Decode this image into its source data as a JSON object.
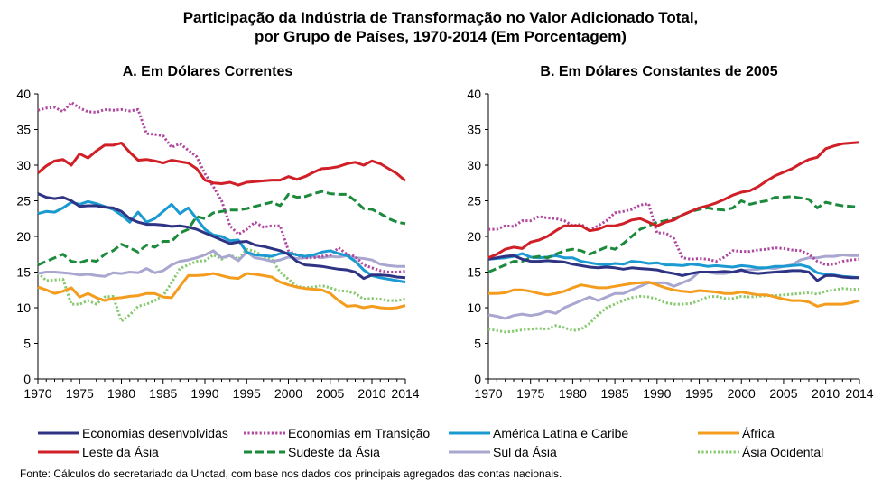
{
  "header": {
    "title_line1": "Participação da Indústria de Transformação no Valor Adicionado Total,",
    "title_line2": "por Grupo de Países, 1970-2014 (Em Porcentagem)"
  },
  "footer": {
    "source": "Fonte: Cálculos do secretariado da Unctad, com base nos dados dos principais agregados das contas nacionais."
  },
  "legend": [
    {
      "name": "Economias desenvolvidas",
      "color": "#2e3383",
      "dash": "solid"
    },
    {
      "name": "Economias em Transição",
      "color": "#b0479e",
      "dash": "dotted"
    },
    {
      "name": "América Latina e Caribe",
      "color": "#1a9ad1",
      "dash": "solid"
    },
    {
      "name": "África",
      "color": "#f39c1e",
      "dash": "solid"
    },
    {
      "name": "Leste da Ásia",
      "color": "#d01f26",
      "dash": "solid"
    },
    {
      "name": "Sudeste da Ásia",
      "color": "#1c8a3c",
      "dash": "dashed"
    },
    {
      "name": "Sul da Ásia",
      "color": "#a9a7d0",
      "dash": "solid"
    },
    {
      "name": "Ásia Ocidental",
      "color": "#86c96e",
      "dash": "dotted"
    }
  ],
  "chart_data": [
    {
      "type": "line",
      "title": "A. Em Dólares Correntes",
      "xlim": [
        1970,
        2014
      ],
      "ylim": [
        0,
        40
      ],
      "xticks": [
        1970,
        1975,
        1980,
        1985,
        1990,
        1995,
        2000,
        2005,
        2010,
        2014
      ],
      "yticks": [
        0,
        5,
        10,
        15,
        20,
        25,
        30,
        35,
        40
      ],
      "x": [
        1970,
        1971,
        1972,
        1973,
        1974,
        1975,
        1976,
        1977,
        1978,
        1979,
        1980,
        1981,
        1982,
        1983,
        1984,
        1985,
        1986,
        1987,
        1988,
        1989,
        1990,
        1991,
        1992,
        1993,
        1994,
        1995,
        1996,
        1997,
        1998,
        1999,
        2000,
        2001,
        2002,
        2003,
        2004,
        2005,
        2006,
        2007,
        2008,
        2009,
        2010,
        2011,
        2012,
        2013,
        2014
      ],
      "series": [
        {
          "name": "Economias desenvolvidas",
          "values": [
            26.0,
            25.5,
            25.3,
            25.5,
            25.0,
            24.2,
            24.3,
            24.3,
            24.1,
            24.0,
            23.5,
            22.5,
            22.0,
            21.7,
            21.7,
            21.6,
            21.4,
            21.5,
            21.3,
            21.0,
            20.5,
            20.0,
            19.5,
            19.0,
            19.2,
            19.3,
            18.8,
            18.6,
            18.3,
            18.0,
            17.5,
            16.5,
            16.0,
            15.9,
            15.8,
            15.6,
            15.4,
            15.3,
            15.0,
            14.1,
            14.6,
            14.6,
            14.5,
            14.3,
            14.2
          ]
        },
        {
          "name": "Economias em Transição",
          "values": [
            37.7,
            38.0,
            38.1,
            37.5,
            38.8,
            38.0,
            37.5,
            37.4,
            37.8,
            37.7,
            37.8,
            37.6,
            37.8,
            34.4,
            34.3,
            34.1,
            32.5,
            33.0,
            32.1,
            31.2,
            28.8,
            27.0,
            25.0,
            21.5,
            20.3,
            21.0,
            22.0,
            21.3,
            21.5,
            21.5,
            18.0,
            17.4,
            17.0,
            17.0,
            17.2,
            17.4,
            18.4,
            17.5,
            17.2,
            16.0,
            15.6,
            15.2,
            15.0,
            15.0,
            15.1
          ]
        },
        {
          "name": "América Latina e Caribe",
          "values": [
            23.2,
            23.5,
            23.4,
            24.0,
            24.8,
            24.5,
            24.9,
            24.6,
            24.2,
            23.8,
            23.0,
            22.0,
            23.4,
            22.0,
            22.5,
            23.5,
            24.5,
            23.2,
            24.0,
            22.5,
            21.0,
            20.2,
            20.0,
            19.4,
            19.5,
            17.8,
            17.4,
            17.3,
            17.2,
            17.6,
            17.7,
            17.4,
            17.2,
            17.4,
            17.8,
            18.0,
            17.6,
            17.3,
            16.5,
            15.3,
            14.5,
            14.2,
            14.0,
            13.8,
            13.6
          ]
        },
        {
          "name": "África",
          "values": [
            12.9,
            12.5,
            12.0,
            12.3,
            12.8,
            11.5,
            12.0,
            11.4,
            11.0,
            11.3,
            11.4,
            11.6,
            11.7,
            12.0,
            12.0,
            11.5,
            11.4,
            13.0,
            14.5,
            14.5,
            14.6,
            14.8,
            14.5,
            14.2,
            14.1,
            14.8,
            14.7,
            14.5,
            14.3,
            13.6,
            13.2,
            12.9,
            12.7,
            12.6,
            12.5,
            12.0,
            11.0,
            10.2,
            10.3,
            10.0,
            10.2,
            10.0,
            9.9,
            10.0,
            10.3
          ]
        },
        {
          "name": "Leste da Ásia",
          "values": [
            28.9,
            29.9,
            30.6,
            30.8,
            30.0,
            31.6,
            31.0,
            32.0,
            32.8,
            32.8,
            33.1,
            31.8,
            30.7,
            30.8,
            30.6,
            30.3,
            30.7,
            30.5,
            30.3,
            29.5,
            27.9,
            27.5,
            27.4,
            27.6,
            27.2,
            27.6,
            27.7,
            27.8,
            27.9,
            27.9,
            28.4,
            28.0,
            28.4,
            29.0,
            29.5,
            29.6,
            29.8,
            30.2,
            30.4,
            30.0,
            30.6,
            30.2,
            29.5,
            28.8,
            27.8
          ]
        },
        {
          "name": "Sudeste da Ásia",
          "values": [
            16.0,
            16.5,
            17.0,
            17.5,
            16.5,
            16.3,
            16.7,
            16.5,
            17.5,
            18.0,
            18.9,
            18.4,
            17.8,
            18.8,
            18.5,
            19.3,
            19.3,
            20.5,
            21.0,
            22.8,
            22.5,
            23.3,
            23.5,
            23.7,
            23.7,
            23.9,
            24.2,
            24.5,
            24.8,
            24.3,
            25.9,
            25.5,
            25.6,
            26.0,
            26.3,
            26.0,
            25.9,
            25.9,
            25.0,
            23.9,
            23.8,
            23.2,
            22.5,
            22.0,
            21.8
          ]
        },
        {
          "name": "Sul da Ásia",
          "values": [
            14.8,
            15.0,
            15.0,
            14.9,
            14.8,
            14.6,
            14.7,
            14.5,
            14.4,
            14.9,
            14.8,
            15.0,
            14.9,
            15.5,
            14.9,
            15.2,
            16.0,
            16.5,
            16.7,
            17.0,
            17.4,
            18.0,
            17.0,
            17.3,
            16.6,
            17.8,
            17.0,
            16.8,
            16.5,
            16.7,
            17.1,
            16.9,
            17.0,
            17.2,
            17.0,
            17.2,
            17.1,
            17.3,
            17.0,
            16.9,
            16.7,
            16.1,
            15.9,
            15.8,
            15.8
          ]
        },
        {
          "name": "Ásia Ocidental",
          "values": [
            14.9,
            13.8,
            13.9,
            14.0,
            10.5,
            10.5,
            11.0,
            10.5,
            11.5,
            11.6,
            8.1,
            9.0,
            10.2,
            10.5,
            11.0,
            11.7,
            13.5,
            15.5,
            16.0,
            16.5,
            16.6,
            17.4,
            16.8,
            17.4,
            16.8,
            18.2,
            17.9,
            17.2,
            16.8,
            15.0,
            14.0,
            13.0,
            12.8,
            12.9,
            13.1,
            12.8,
            12.4,
            12.3,
            12.0,
            11.2,
            11.3,
            11.2,
            11.0,
            11.0,
            11.2
          ]
        }
      ]
    },
    {
      "type": "line",
      "title": "B. Em Dólares Constantes de 2005",
      "xlim": [
        1970,
        2014
      ],
      "ylim": [
        0,
        40
      ],
      "xticks": [
        1970,
        1975,
        1980,
        1985,
        1990,
        1995,
        2000,
        2005,
        2010,
        2014
      ],
      "yticks": [
        0,
        5,
        10,
        15,
        20,
        25,
        30,
        35,
        40
      ],
      "x": [
        1970,
        1971,
        1972,
        1973,
        1974,
        1975,
        1976,
        1977,
        1978,
        1979,
        1980,
        1981,
        1982,
        1983,
        1984,
        1985,
        1986,
        1987,
        1988,
        1989,
        1990,
        1991,
        1992,
        1993,
        1994,
        1995,
        1996,
        1997,
        1998,
        1999,
        2000,
        2001,
        2002,
        2003,
        2004,
        2005,
        2006,
        2007,
        2008,
        2009,
        2010,
        2011,
        2012,
        2013,
        2014
      ],
      "series": [
        {
          "name": "Economias desenvolvidas",
          "values": [
            16.8,
            17.0,
            17.2,
            17.3,
            16.8,
            16.5,
            16.5,
            16.6,
            16.5,
            16.4,
            16.1,
            15.9,
            15.7,
            15.6,
            15.7,
            15.6,
            15.4,
            15.6,
            15.5,
            15.4,
            15.3,
            15.0,
            14.8,
            14.5,
            14.8,
            15.0,
            15.0,
            15.0,
            15.1,
            15.0,
            15.3,
            14.9,
            14.8,
            14.9,
            15.0,
            15.1,
            15.2,
            15.2,
            15.0,
            13.8,
            14.5,
            14.5,
            14.3,
            14.2,
            14.2
          ]
        },
        {
          "name": "Economias em Transição",
          "values": [
            21.0,
            21.0,
            21.5,
            21.4,
            22.2,
            22.2,
            22.8,
            22.6,
            22.5,
            22.2,
            21.5,
            21.7,
            20.9,
            21.5,
            22.2,
            23.3,
            23.5,
            23.8,
            24.4,
            24.6,
            20.5,
            20.5,
            19.7,
            17.0,
            16.8,
            16.9,
            16.8,
            16.5,
            17.1,
            18.0,
            17.9,
            17.9,
            18.1,
            18.2,
            18.4,
            18.3,
            18.1,
            18.0,
            17.5,
            16.5,
            16.0,
            16.1,
            16.5,
            16.7,
            16.8
          ]
        },
        {
          "name": "América Latina e Caribe",
          "values": [
            16.8,
            16.9,
            17.0,
            17.2,
            17.6,
            17.1,
            17.0,
            17.1,
            17.3,
            17.0,
            17.0,
            16.5,
            16.3,
            16.1,
            16.0,
            16.2,
            16.1,
            16.5,
            16.4,
            16.2,
            16.3,
            16.0,
            16.0,
            15.9,
            16.1,
            16.0,
            15.8,
            15.9,
            15.8,
            15.7,
            15.9,
            15.8,
            15.6,
            15.6,
            15.8,
            15.8,
            15.9,
            16.0,
            15.7,
            14.9,
            14.7,
            14.6,
            14.4,
            14.3,
            14.2
          ]
        },
        {
          "name": "África",
          "values": [
            12.0,
            12.0,
            12.1,
            12.5,
            12.5,
            12.3,
            12.0,
            11.8,
            12.0,
            12.3,
            12.8,
            13.2,
            13.0,
            12.8,
            12.8,
            13.0,
            13.2,
            13.4,
            13.5,
            13.6,
            13.2,
            12.8,
            12.5,
            12.3,
            12.2,
            12.4,
            12.3,
            12.2,
            12.0,
            12.0,
            12.2,
            12.0,
            11.8,
            11.8,
            11.5,
            11.2,
            11.0,
            11.0,
            10.8,
            10.2,
            10.5,
            10.5,
            10.5,
            10.7,
            11.0
          ]
        },
        {
          "name": "Leste da Ásia",
          "values": [
            17.0,
            17.5,
            18.2,
            18.5,
            18.3,
            19.2,
            19.5,
            20.0,
            20.8,
            21.5,
            21.5,
            21.5,
            20.8,
            21.0,
            21.5,
            21.5,
            21.8,
            22.3,
            22.5,
            22.0,
            21.5,
            22.0,
            22.3,
            23.0,
            23.5,
            24.0,
            24.3,
            24.7,
            25.2,
            25.8,
            26.2,
            26.4,
            27.0,
            27.8,
            28.5,
            29.0,
            29.5,
            30.2,
            30.8,
            31.1,
            32.3,
            32.7,
            33.0,
            33.1,
            33.2
          ]
        },
        {
          "name": "Sudeste da Ásia",
          "values": [
            15.0,
            15.5,
            16.0,
            16.5,
            16.5,
            17.0,
            17.2,
            17.0,
            17.5,
            18.0,
            18.2,
            18.0,
            17.5,
            18.0,
            18.5,
            18.2,
            19.0,
            20.0,
            21.0,
            21.5,
            22.0,
            22.2,
            22.5,
            23.0,
            23.5,
            23.8,
            24.0,
            23.8,
            23.7,
            24.0,
            25.0,
            24.5,
            24.8,
            25.0,
            25.5,
            25.5,
            25.6,
            25.4,
            25.2,
            24.0,
            24.8,
            24.5,
            24.3,
            24.2,
            24.1
          ]
        },
        {
          "name": "Sul da Ásia",
          "values": [
            9.0,
            8.8,
            8.5,
            8.9,
            9.1,
            8.9,
            9.1,
            9.5,
            9.2,
            10.0,
            10.5,
            11.0,
            11.5,
            11.0,
            11.5,
            12.0,
            12.0,
            12.5,
            13.0,
            13.5,
            13.5,
            13.5,
            13.0,
            13.5,
            14.0,
            15.0,
            15.0,
            14.8,
            14.8,
            15.0,
            15.2,
            15.3,
            15.4,
            15.6,
            15.5,
            15.8,
            16.0,
            16.7,
            17.0,
            17.0,
            17.2,
            17.2,
            17.4,
            17.3,
            17.3
          ]
        },
        {
          "name": "Ásia Ocidental",
          "values": [
            7.0,
            6.8,
            6.6,
            6.7,
            6.9,
            7.0,
            7.1,
            7.0,
            7.5,
            7.2,
            6.8,
            7.0,
            7.8,
            9.0,
            10.0,
            10.5,
            11.0,
            11.4,
            11.6,
            11.5,
            11.2,
            10.7,
            10.5,
            10.5,
            10.6,
            11.0,
            11.5,
            11.6,
            11.3,
            11.3,
            11.6,
            11.5,
            11.6,
            11.7,
            11.7,
            11.8,
            11.9,
            12.0,
            12.1,
            11.9,
            12.3,
            12.5,
            12.7,
            12.6,
            12.6
          ]
        }
      ]
    }
  ]
}
